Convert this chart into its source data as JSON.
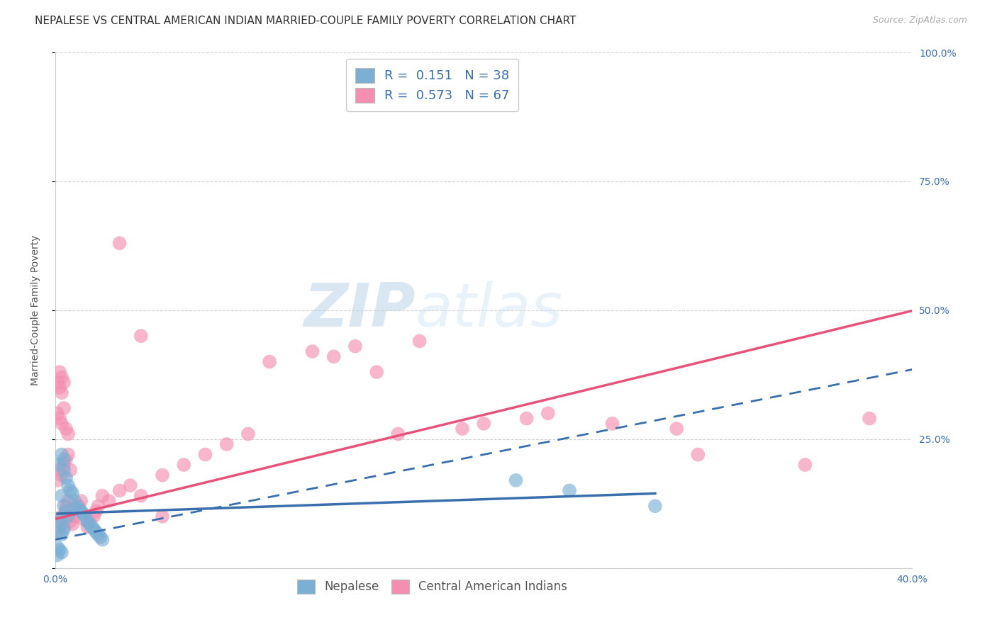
{
  "title": "NEPALESE VS CENTRAL AMERICAN INDIAN MARRIED-COUPLE FAMILY POVERTY CORRELATION CHART",
  "source": "Source: ZipAtlas.com",
  "ylabel": "Married-Couple Family Poverty",
  "xlim": [
    0.0,
    0.4
  ],
  "ylim": [
    0.0,
    1.0
  ],
  "ytick_labels_right": [
    "100.0%",
    "75.0%",
    "50.0%",
    "25.0%"
  ],
  "ytick_positions_right": [
    1.0,
    0.75,
    0.5,
    0.25
  ],
  "nepalese_R": 0.151,
  "nepalese_N": 38,
  "central_american_R": 0.573,
  "central_american_N": 67,
  "nepalese_color": "#7bafd4",
  "central_american_color": "#f48fb1",
  "nepalese_line_color": "#3a6fad",
  "central_american_line_color": "#e8517a",
  "background_color": "#ffffff",
  "grid_color": "#cccccc",
  "title_fontsize": 11,
  "axis_label_fontsize": 10,
  "tick_fontsize": 10,
  "watermark_zip": "ZIP",
  "watermark_atlas": "atlas",
  "pink_line_intercept": 0.095,
  "pink_line_slope": 1.01,
  "blue_line_intercept": 0.055,
  "blue_line_slope": 0.825,
  "nepalese_x": [
    0.002,
    0.003,
    0.004,
    0.004,
    0.005,
    0.006,
    0.007,
    0.008,
    0.009,
    0.01,
    0.011,
    0.012,
    0.013,
    0.014,
    0.015,
    0.016,
    0.017,
    0.018,
    0.019,
    0.02,
    0.021,
    0.022,
    0.003,
    0.004,
    0.005,
    0.006,
    0.002,
    0.003,
    0.004,
    0.002,
    0.003,
    0.001,
    0.002,
    0.003,
    0.001,
    0.215,
    0.24,
    0.28
  ],
  "nepalese_y": [
    0.2,
    0.22,
    0.19,
    0.21,
    0.175,
    0.16,
    0.15,
    0.145,
    0.13,
    0.12,
    0.115,
    0.11,
    0.105,
    0.1,
    0.09,
    0.085,
    0.08,
    0.075,
    0.07,
    0.065,
    0.06,
    0.055,
    0.14,
    0.12,
    0.11,
    0.1,
    0.095,
    0.085,
    0.075,
    0.07,
    0.065,
    0.04,
    0.035,
    0.03,
    0.025,
    0.17,
    0.15,
    0.12
  ],
  "central_american_x": [
    0.001,
    0.002,
    0.003,
    0.004,
    0.005,
    0.005,
    0.006,
    0.007,
    0.008,
    0.009,
    0.01,
    0.011,
    0.012,
    0.013,
    0.015,
    0.016,
    0.018,
    0.019,
    0.02,
    0.022,
    0.025,
    0.03,
    0.035,
    0.04,
    0.05,
    0.001,
    0.002,
    0.003,
    0.004,
    0.005,
    0.006,
    0.007,
    0.001,
    0.002,
    0.003,
    0.004,
    0.005,
    0.006,
    0.001,
    0.002,
    0.003,
    0.002,
    0.003,
    0.004,
    0.16,
    0.19,
    0.2,
    0.22,
    0.23,
    0.26,
    0.29,
    0.3,
    0.35,
    0.38,
    0.1,
    0.12,
    0.13,
    0.14,
    0.15,
    0.17,
    0.07,
    0.08,
    0.09,
    0.05,
    0.06,
    0.04,
    0.03
  ],
  "central_american_y": [
    0.07,
    0.09,
    0.1,
    0.08,
    0.11,
    0.12,
    0.13,
    0.09,
    0.085,
    0.1,
    0.11,
    0.12,
    0.13,
    0.095,
    0.08,
    0.09,
    0.1,
    0.11,
    0.12,
    0.14,
    0.13,
    0.15,
    0.16,
    0.14,
    0.1,
    0.17,
    0.19,
    0.18,
    0.2,
    0.21,
    0.22,
    0.19,
    0.3,
    0.29,
    0.28,
    0.31,
    0.27,
    0.26,
    0.36,
    0.35,
    0.34,
    0.38,
    0.37,
    0.36,
    0.26,
    0.27,
    0.28,
    0.29,
    0.3,
    0.28,
    0.27,
    0.22,
    0.2,
    0.29,
    0.4,
    0.42,
    0.41,
    0.43,
    0.38,
    0.44,
    0.22,
    0.24,
    0.26,
    0.18,
    0.2,
    0.45,
    0.63
  ]
}
